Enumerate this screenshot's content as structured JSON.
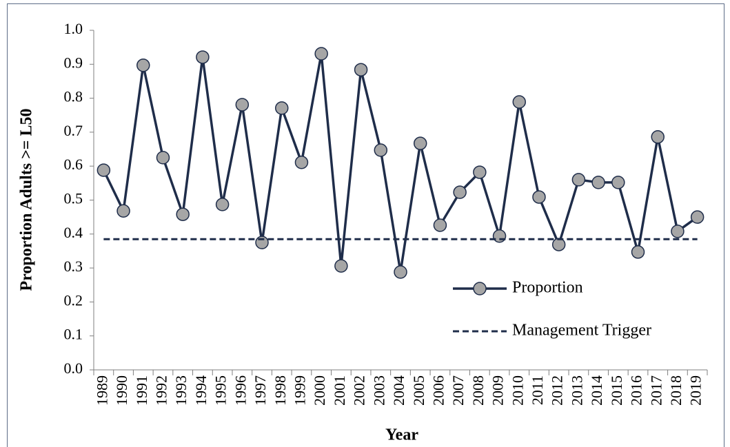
{
  "chart_data": {
    "type": "line",
    "x_label": "Year",
    "y_label": "Proportion Adults >= L50",
    "categories": [
      "1989",
      "1990",
      "1991",
      "1992",
      "1993",
      "1994",
      "1995",
      "1996",
      "1997",
      "1998",
      "1999",
      "2000",
      "2001",
      "2002",
      "2003",
      "2004",
      "2005",
      "2006",
      "2007",
      "2008",
      "2009",
      "2010",
      "2011",
      "2012",
      "2013",
      "2014",
      "2015",
      "2016",
      "2017",
      "2018",
      "2019"
    ],
    "series": [
      {
        "name": "Proportion",
        "color": "#1f2d4a",
        "marker_color": "#a6a6a6",
        "dashed": false,
        "values": [
          0.588,
          0.468,
          0.897,
          0.625,
          0.458,
          0.921,
          0.487,
          0.781,
          0.375,
          0.771,
          0.611,
          0.931,
          0.306,
          0.884,
          0.647,
          0.288,
          0.667,
          0.426,
          0.523,
          0.582,
          0.394,
          0.789,
          0.509,
          0.369,
          0.56,
          0.552,
          0.552,
          0.347,
          0.686,
          0.408,
          0.45
        ]
      },
      {
        "name": "Management Trigger",
        "color": "#1f2d4a",
        "dashed": true,
        "values": [
          0.385,
          0.385,
          0.385,
          0.385,
          0.385,
          0.385,
          0.385,
          0.385,
          0.385,
          0.385,
          0.385,
          0.385,
          0.385,
          0.385,
          0.385,
          0.385,
          0.385,
          0.385,
          0.385,
          0.385,
          0.385,
          0.385,
          0.385,
          0.385,
          0.385,
          0.385,
          0.385,
          0.385,
          0.385,
          0.385,
          0.385
        ]
      }
    ],
    "ylim": [
      0,
      1
    ],
    "yticks": [
      {
        "value": 0,
        "label": "0.0"
      },
      0.1,
      0.2,
      0.3,
      0.4,
      0.5,
      0.6,
      0.7,
      0.8,
      0.9,
      {
        "value": 1,
        "label": "1.0"
      }
    ],
    "legend": "lower-right"
  }
}
